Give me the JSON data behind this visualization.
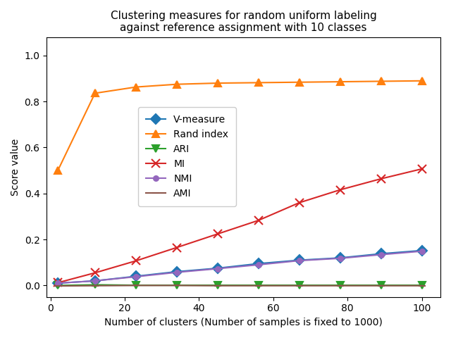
{
  "title": "Clustering measures for random uniform labeling\nagainst reference assignment with 10 classes",
  "xlabel": "Number of clusters (Number of samples is fixed to 1000)",
  "ylabel": "Score value",
  "x": [
    2,
    12,
    23,
    34,
    45,
    56,
    67,
    78,
    89,
    100
  ],
  "V_measure": [
    0.01,
    0.02,
    0.04,
    0.06,
    0.075,
    0.095,
    0.11,
    0.12,
    0.138,
    0.152
  ],
  "Rand_index": [
    0.5,
    0.836,
    0.863,
    0.875,
    0.88,
    0.882,
    0.884,
    0.886,
    0.888,
    0.89
  ],
  "ARI": [
    0.0,
    0.003,
    0.001,
    0.001,
    0.001,
    0.001,
    0.001,
    0.001,
    0.001,
    0.001
  ],
  "MI": [
    0.012,
    0.055,
    0.107,
    0.165,
    0.224,
    0.283,
    0.36,
    0.416,
    0.464,
    0.507
  ],
  "NMI": [
    0.01,
    0.02,
    0.038,
    0.057,
    0.073,
    0.09,
    0.108,
    0.118,
    0.134,
    0.149
  ],
  "AMI": [
    -0.002,
    -0.001,
    0.0,
    0.0,
    -0.001,
    -0.001,
    -0.001,
    -0.001,
    -0.001,
    -0.001
  ],
  "colors": {
    "V_measure": "#1f77b4",
    "Rand_index": "#ff7f0e",
    "ARI": "#2ca02c",
    "MI": "#d62728",
    "NMI": "#9467bd",
    "AMI": "#8c564b"
  },
  "markers": {
    "V_measure": "D",
    "Rand_index": "^",
    "ARI": "v",
    "MI": "x",
    "NMI": "o",
    "AMI": "_"
  },
  "markersizes": {
    "V_measure": 7,
    "Rand_index": 7,
    "ARI": 7,
    "MI": 8,
    "NMI": 5,
    "AMI": 7
  },
  "figsize": [
    6.4,
    4.8
  ],
  "dpi": 100,
  "ylim": [
    -0.05,
    1.08
  ],
  "xlim": [
    -1,
    105
  ]
}
